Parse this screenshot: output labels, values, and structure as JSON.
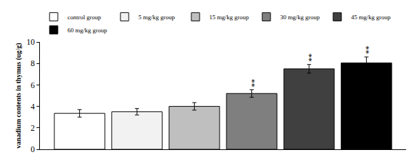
{
  "chart_data": {
    "type": "bar",
    "y_label": "vanadium contents in thymus (ug/g)",
    "categories": [
      null
    ],
    "series": [
      {
        "name": "control group",
        "color": "#ffffff",
        "values": [
          3.35
        ],
        "errors": [
          0.35
        ]
      },
      {
        "name": "5 mg/kg group",
        "color": "#f2f2f2",
        "values": [
          3.5
        ],
        "errors": [
          0.3
        ]
      },
      {
        "name": "15 mg/kg group",
        "color": "#bfbfbf",
        "values": [
          4.0
        ],
        "errors": [
          0.35
        ]
      },
      {
        "name": "30 mg/kg group",
        "color": "#7f7f7f",
        "values": [
          5.2
        ],
        "errors": [
          0.35
        ]
      },
      {
        "name": "45 mg/kg group",
        "color": "#404040",
        "values": [
          7.5
        ],
        "errors": [
          0.4
        ]
      },
      {
        "name": "60 mg/kg group",
        "color": "#000000",
        "values": [
          8.05
        ],
        "errors": [
          0.55
        ]
      }
    ],
    "annotations": [
      {
        "series": "30 mg/kg group",
        "text": "**"
      },
      {
        "series": "45 mg/kg group",
        "text": "**"
      },
      {
        "series": "60 mg/kg group",
        "text": "**"
      }
    ],
    "ylim": [
      0,
      10
    ],
    "yticks": [
      0,
      2,
      4,
      6,
      8,
      10
    ],
    "grid": false,
    "legend": "top",
    "tick_labels": "y"
  }
}
